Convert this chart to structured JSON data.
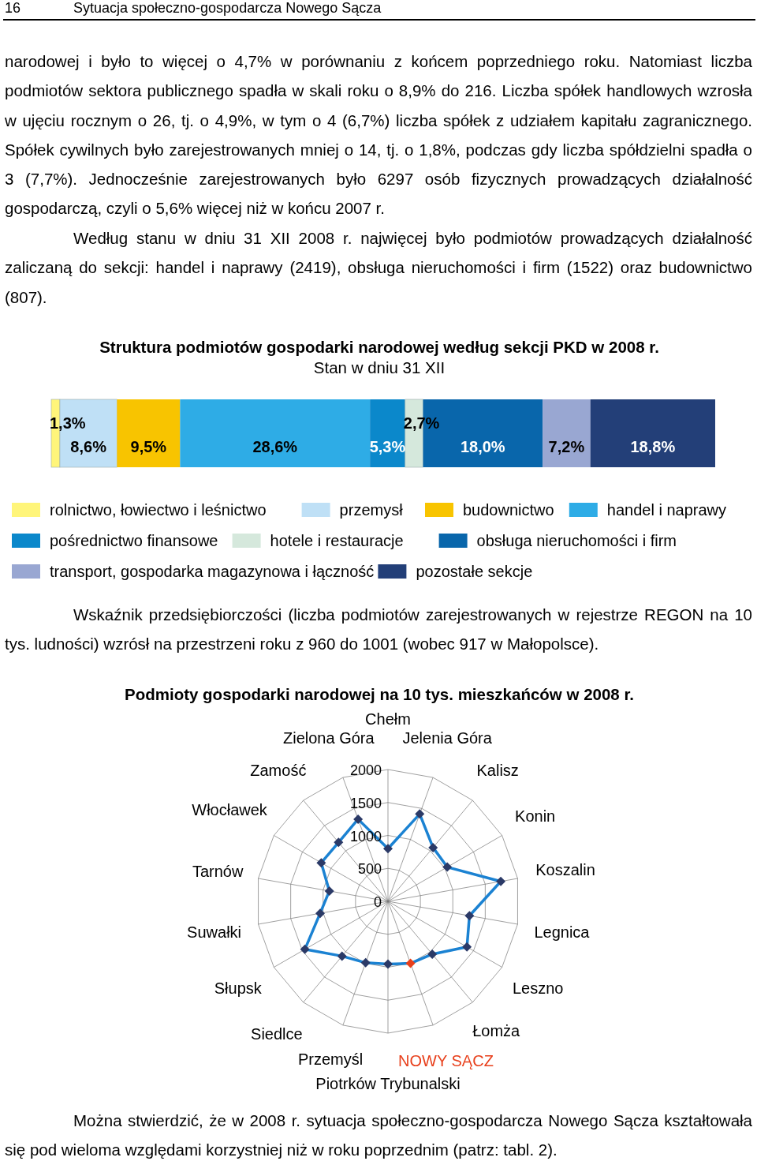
{
  "chart_data": [
    {
      "type": "bar",
      "orientation": "horizontal",
      "stacked": true,
      "title": "Struktura podmiotów gospodarki narodowej według sekcji PKD w 2008 r.",
      "subtitle": "Stan w dniu 31 XII",
      "categories": [
        null
      ],
      "xlim": [
        0,
        100
      ],
      "tick_labels": false,
      "legend": "bottom",
      "annotations": [
        "16",
        "Sytuacja społeczno-gospodarcza Nowego Sącza",
        "narodowej i było to więcej o 4,7% w porównaniu z końcem poprzedniego roku. Natomiast liczba podmiotów sektora publicznego spadła w skali roku o 8,9% do 216. Liczba spółek handlowych wzrosła w ujęciu rocznym o 26, tj. o 4,9%, w tym o 4 (6,7%) liczba spółek z udziałem kapitału zagranicznego. Spółek cywilnych było zarejestrowanych mniej o 14, tj. o 1,8%, podczas gdy liczba spółdzielni spadła o 3 (7,7%). Jednocześnie zarejestrowanych było 6297 osób fizycznych prowadzących działalność gospodarczą, czyli o 5,6% więcej niż w końcu 2007 r.",
        "Według stanu w dniu 31 XII 2008 r. najwięcej było podmiotów prowadzących działalność zaliczaną do sekcji: handel i naprawy (2419), obsługa nieruchomości i firm (1522) oraz budownictwo (807)."
      ],
      "series": [
        {
          "name": "rolnictwo, łowiectwo i leśnictwo",
          "color": "#fff57a",
          "values": [
            1.3
          ],
          "value_labels": [
            "1,3%"
          ]
        },
        {
          "name": "przemysł",
          "color": "#bfe0f6",
          "values": [
            8.6
          ],
          "value_labels": [
            "8,6%"
          ]
        },
        {
          "name": "budownictwo",
          "color": "#f8c400",
          "values": [
            9.5
          ],
          "value_labels": [
            "9,5%"
          ]
        },
        {
          "name": "handel i naprawy",
          "color": "#2eace6",
          "values": [
            28.6
          ],
          "value_labels": [
            "28,6%"
          ]
        },
        {
          "name": "pośrednictwo finansowe",
          "color": "#0b88cb",
          "values": [
            5.3
          ],
          "value_labels": [
            "5,3%"
          ]
        },
        {
          "name": "hotele i restauracje",
          "color": "#d5e8dc",
          "values": [
            2.7
          ],
          "value_labels": [
            "2,7%"
          ]
        },
        {
          "name": "obsługa nieruchomości i firm",
          "color": "#0966ab",
          "values": [
            18.0
          ],
          "value_labels": [
            "18,0%"
          ]
        },
        {
          "name": "transport, gospodarka magazynowa i łączność",
          "color": "#99a7d2",
          "values": [
            7.2
          ],
          "value_labels": [
            "7,2%"
          ]
        },
        {
          "name": "pozostałe sekcje",
          "color": "#233f78",
          "values": [
            18.8
          ],
          "value_labels": [
            "18,8%"
          ]
        }
      ]
    },
    {
      "type": "radar",
      "title": "Podmioty gospodarki narodowej na 10 tys. mieszkańców w 2008 r.",
      "categories": [
        "Chełm",
        "Jelenia Góra",
        "Kalisz",
        "Konin",
        "Koszalin",
        "Legnica",
        "Leszno",
        "Łomża",
        "NOWY SĄCZ",
        "Piotrków Trybunalski",
        "Przemyśl",
        "Siedlce",
        "Słupsk",
        "Suwałki",
        "Tarnów",
        "Włocławek",
        "Zamość",
        "Zielona Góra"
      ],
      "ylim": [
        0,
        2000
      ],
      "yticks": [
        0,
        500,
        1000,
        1500,
        2000
      ],
      "grid": true,
      "marker": "diamond",
      "annotations": [
        "Wskaźnik przedsiębiorczości (liczba podmiotów zarejestrowanych w rejestrze REGON na 10 tys. ludności) wzrósł na przestrzeni roku z 960 do 1001 (wobec 917 w Małopolsce).",
        "Można stwierdzić, że w 2008 r. sytuacja społeczno-gospodarcza Nowego Sącza kształtowała się pod wieloma względami korzystniej niż w roku poprzednim (patrz: tabl. 2)."
      ],
      "series": [
        {
          "color": "#1b82d2",
          "values": [
            800,
            1410,
            1065,
            1040,
            1740,
            1257,
            1385,
            1047,
            1001,
            952,
            992,
            1085,
            1457,
            1046,
            904,
            1170,
            1168,
            1327
          ],
          "colors": [
            "#2b3a67",
            "#2b3a67",
            "#2b3a67",
            "#2b3a67",
            "#2b3a67",
            "#2b3a67",
            "#2b3a67",
            "#2b3a67",
            "#e8401c",
            "#2b3a67",
            "#2b3a67",
            "#2b3a67",
            "#2b3a67",
            "#2b3a67",
            "#2b3a67",
            "#2b3a67",
            "#2b3a67",
            "#2b3a67"
          ]
        }
      ]
    }
  ]
}
